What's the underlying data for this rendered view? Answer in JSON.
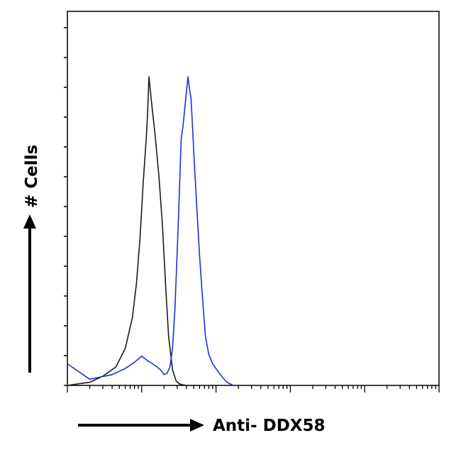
{
  "chart_data": {
    "type": "line",
    "title": "",
    "xlabel": "Anti- DDX58",
    "ylabel": "# Cells",
    "x_scale": "log",
    "xlim": [
      1,
      100000
    ],
    "ylim": [
      0,
      100
    ],
    "grid": false,
    "legend": "none",
    "series": [
      {
        "color": "#1a1a1a",
        "x": [
          1,
          1.4,
          2,
          3,
          4.5,
          6,
          7.5,
          8.5,
          9.5,
          10.5,
          11.5,
          12,
          12.5,
          13.5,
          15,
          17,
          19,
          21,
          23,
          26,
          29,
          32,
          36,
          40,
          50,
          60
        ],
        "y": [
          0,
          0.5,
          1,
          3,
          6,
          12,
          22,
          33,
          48,
          66,
          80,
          88,
          100,
          92,
          82,
          68,
          52,
          32,
          16,
          5,
          1.5,
          0.5,
          0.2,
          0,
          0,
          0
        ]
      },
      {
        "color": "#1f2fd6",
        "x": [
          1,
          2,
          4,
          6,
          8,
          10,
          12,
          14,
          16,
          18,
          20,
          22,
          24,
          26,
          28,
          31,
          34,
          36,
          38,
          40,
          42,
          44,
          46,
          48,
          51,
          55,
          60,
          65,
          72,
          80,
          90,
          110,
          140,
          170
        ],
        "y": [
          7,
          2,
          3.5,
          5.5,
          7.5,
          9.5,
          8,
          7,
          6,
          5,
          3.5,
          4,
          6,
          12,
          25,
          52,
          80,
          84,
          90,
          95,
          100,
          96,
          93,
          85,
          72,
          58,
          42,
          30,
          16,
          10,
          7,
          4,
          1,
          0
        ]
      }
    ]
  }
}
